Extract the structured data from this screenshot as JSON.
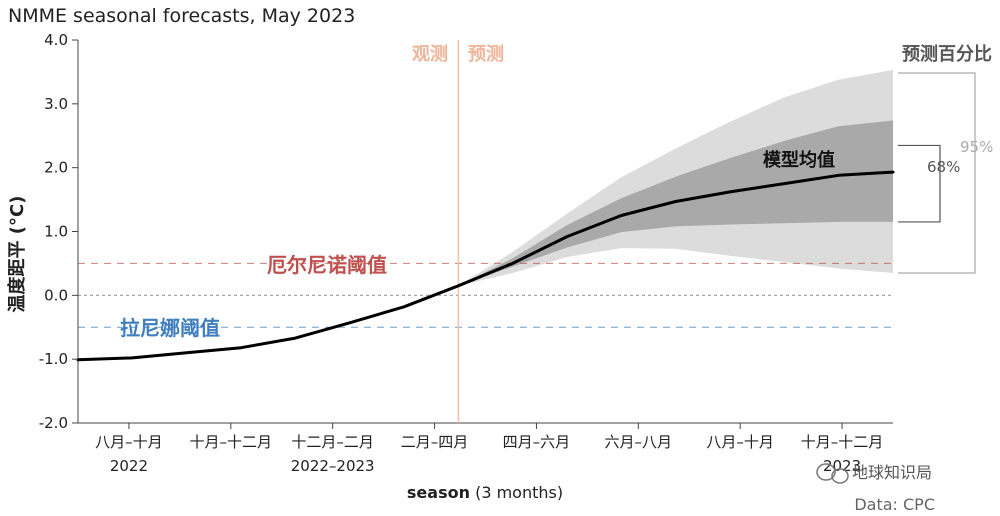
{
  "chart_data": {
    "type": "line",
    "title": "NMME seasonal forecasts, May 2023",
    "ylabel": "温度距平 (°C)",
    "xlabel": "season",
    "xlabel_suffix": " (3 months)",
    "ylim": [
      -2.0,
      4.0
    ],
    "yticks": [
      "4.0",
      "3.0",
      "2.0",
      "1.0",
      "0.0",
      "-1.0",
      "-2.0"
    ],
    "categories": [
      "八月–十月",
      "十月–十二月",
      "十二月–二月",
      "二月–四月",
      "四月–六月",
      "六月–八月",
      "八月–十月",
      "十月–十二月"
    ],
    "category_years": [
      "2022",
      "",
      "2022–2023",
      "",
      "",
      "",
      "",
      "2023"
    ],
    "x": [
      0,
      0.5,
      1,
      1.5,
      2,
      2.5,
      3,
      3.5,
      4,
      4.5,
      5,
      5.5,
      6,
      6.5,
      7,
      7.5
    ],
    "series": [
      {
        "name": "模型均值",
        "values": [
          -1.01,
          -0.98,
          -0.9,
          -0.82,
          -0.67,
          -0.43,
          -0.18,
          0.15,
          0.5,
          0.92,
          1.25,
          1.47,
          1.62,
          1.75,
          1.88,
          1.93
        ]
      }
    ],
    "band_68": {
      "x": [
        3.5,
        4,
        4.5,
        5,
        5.5,
        6,
        6.5,
        7,
        7.5
      ],
      "low": [
        0.15,
        0.45,
        0.75,
        0.99,
        1.08,
        1.11,
        1.13,
        1.15,
        1.15
      ],
      "high": [
        0.15,
        0.58,
        1.1,
        1.52,
        1.86,
        2.15,
        2.42,
        2.65,
        2.74
      ]
    },
    "band_95": {
      "x": [
        3.5,
        4,
        4.5,
        5,
        5.5,
        6,
        6.5,
        7,
        7.5
      ],
      "low": [
        0.15,
        0.35,
        0.6,
        0.74,
        0.73,
        0.62,
        0.52,
        0.42,
        0.35
      ],
      "high": [
        0.15,
        0.68,
        1.28,
        1.85,
        2.3,
        2.72,
        3.1,
        3.38,
        3.53
      ]
    },
    "thresholds": [
      {
        "name": "厄尔尼诺阈值",
        "value": 0.5,
        "color": "#c0504d"
      },
      {
        "name": "拉尼娜阈值",
        "value": -0.5,
        "color": "#3f7fbf"
      }
    ],
    "forecast_start": 3.5,
    "phase_labels": {
      "observed": "观测",
      "forecast": "预测"
    },
    "percentile_title": "预测百分比",
    "percentile_labels": {
      "p68": "68%",
      "p95": "95%"
    },
    "colors": {
      "band95": "#dcdcdc",
      "band68": "#a9a9a9",
      "mean": "#000000",
      "divider": "#f2c4ae",
      "zero": "#999999"
    },
    "grid": false,
    "source": "Data: CPC"
  },
  "watermark": "地球知识局"
}
